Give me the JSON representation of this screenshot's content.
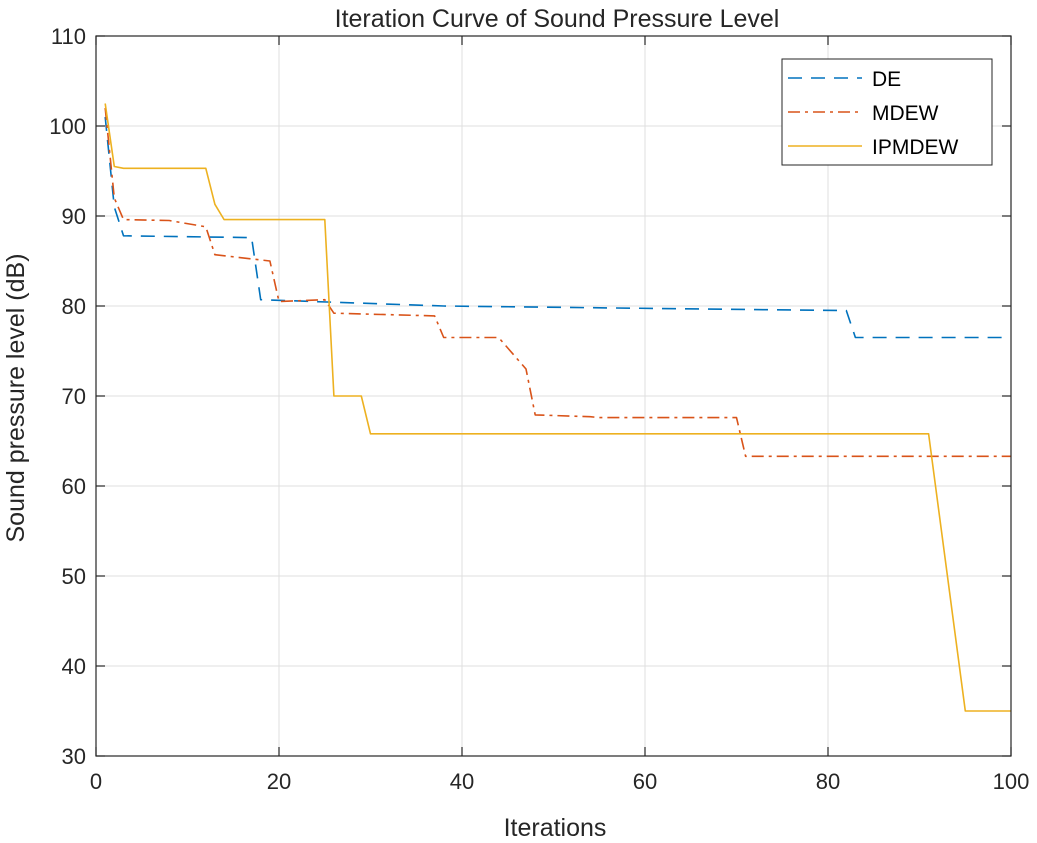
{
  "chart_data": {
    "type": "line",
    "title": "Iteration Curve of Sound Pressure Level",
    "xlabel": "Iterations",
    "ylabel": "Sound pressure level (dB)",
    "xlim": [
      0,
      100
    ],
    "ylim": [
      30,
      110
    ],
    "xticks": [
      "0",
      "20",
      "40",
      "60",
      "80",
      "100"
    ],
    "yticks": [
      "30",
      "40",
      "50",
      "60",
      "70",
      "80",
      "90",
      "100",
      "110"
    ],
    "grid": true,
    "legend_position": "top-right",
    "series": [
      {
        "name": "DE",
        "color": "#0072BD",
        "dash": "dashed",
        "x": [
          1,
          2,
          3,
          17,
          18,
          38,
          72,
          82,
          83,
          100
        ],
        "y": [
          101,
          91,
          87.8,
          87.6,
          80.7,
          80,
          79.6,
          79.5,
          76.5,
          76.5
        ]
      },
      {
        "name": "MDEW",
        "color": "#D95319",
        "dash": "dashdot",
        "x": [
          1,
          2,
          3,
          8,
          12,
          13,
          19,
          20,
          25,
          26,
          37,
          38,
          44,
          47,
          48,
          54,
          55,
          70,
          71,
          100
        ],
        "y": [
          102,
          92,
          89.6,
          89.5,
          88.8,
          85.7,
          85,
          80.5,
          80.7,
          79.2,
          78.9,
          76.5,
          76.5,
          73,
          67.9,
          67.7,
          67.6,
          67.6,
          63.3,
          63.3
        ]
      },
      {
        "name": "IPMDEW",
        "color": "#EDB120",
        "dash": "solid",
        "x": [
          1,
          2,
          3,
          12,
          13,
          14,
          25,
          26,
          29,
          30,
          91,
          95,
          100
        ],
        "y": [
          102.5,
          95.5,
          95.3,
          95.3,
          91.3,
          89.6,
          89.6,
          70,
          70,
          65.8,
          65.8,
          35,
          35
        ]
      }
    ]
  }
}
